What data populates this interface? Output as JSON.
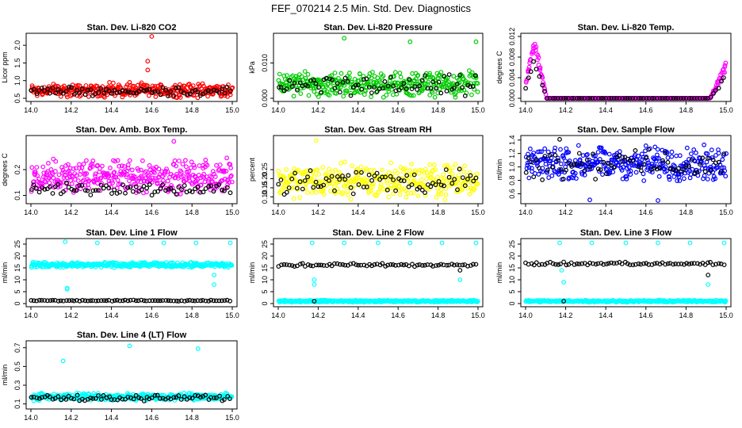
{
  "suptitle": "FEF_070214  2.5 Min. Std. Dev. Diagnostics",
  "chart_data": [
    {
      "type": "scatter",
      "title": "Stan. Dev. Li-820 CO2",
      "ylabel": "Licor ppm",
      "xlim": [
        14.0,
        15.0
      ],
      "ylim": [
        0.5,
        2.25
      ],
      "xticks": [
        "14.0",
        "14.2",
        "14.4",
        "14.6",
        "14.8",
        "15.0"
      ],
      "yticks": [
        0.5,
        1.0,
        1.5,
        2.0
      ],
      "series": [
        {
          "name": "Black",
          "color": "#000000",
          "values_range": [
            0.55,
            0.85
          ]
        },
        {
          "name": "Red",
          "color": "#ff0000",
          "values_range": [
            0.5,
            0.95
          ],
          "outliers": [
            [
              14.58,
              1.3
            ],
            [
              14.6,
              2.25
            ],
            [
              14.58,
              1.55
            ],
            [
              14.39,
              0.95
            ],
            [
              14.49,
              0.95
            ]
          ]
        }
      ]
    },
    {
      "type": "scatter",
      "title": "Stan. Dev. Li-820 Pressure",
      "ylabel": "kPa",
      "xlim": [
        14.0,
        15.0
      ],
      "ylim": [
        0.0,
        0.0175
      ],
      "xticks": [
        "14.0",
        "14.2",
        "14.4",
        "14.6",
        "14.8",
        "15.0"
      ],
      "yticks": [
        0.0,
        0.01
      ],
      "series": [
        {
          "name": "Black",
          "color": "#000000",
          "values_range": [
            0.0,
            0.007
          ]
        },
        {
          "name": "Green",
          "color": "#00cc00",
          "values_range": [
            0.0,
            0.008
          ],
          "outliers": [
            [
              14.33,
              0.017
            ],
            [
              14.66,
              0.016
            ],
            [
              14.99,
              0.016
            ]
          ]
        }
      ]
    },
    {
      "type": "scatter",
      "title": "Stan. Dev. Li-820 Temp.",
      "ylabel": "degrees C",
      "xlim": [
        14.0,
        15.0
      ],
      "ylim": [
        0.0,
        0.012
      ],
      "xticks": [
        "14.0",
        "14.2",
        "14.4",
        "14.6",
        "14.8",
        "15.0"
      ],
      "yticks": [
        0.0,
        0.004,
        0.008,
        0.012
      ],
      "series": [
        {
          "name": "Black",
          "color": "#000000",
          "values_range": [
            0.0,
            0.008
          ]
        },
        {
          "name": "Magenta",
          "color": "#ff00ff",
          "values_range": [
            0.0,
            0.012
          ]
        }
      ]
    },
    {
      "type": "scatter",
      "title": "Stan. Dev. Amb. Box Temp.",
      "ylabel": "degrees C",
      "xlim": [
        14.0,
        15.0
      ],
      "ylim": [
        0.08,
        0.32
      ],
      "xticks": [
        "14.0",
        "14.2",
        "14.4",
        "14.6",
        "14.8",
        "15.0"
      ],
      "yticks": [
        0.1,
        0.2
      ],
      "series": [
        {
          "name": "Black",
          "color": "#000000",
          "values_range": [
            0.1,
            0.15
          ]
        },
        {
          "name": "Magenta",
          "color": "#ff00ff",
          "values_range": [
            0.1,
            0.25
          ],
          "outliers": [
            [
              14.71,
              0.31
            ]
          ]
        }
      ]
    },
    {
      "type": "scatter",
      "title": "Stan. Dev. Gas Stream RH",
      "ylabel": "percent",
      "xlim": [
        14.0,
        15.0
      ],
      "ylim": [
        0.08,
        0.42
      ],
      "xticks": [
        "14.0",
        "14.2",
        "14.4",
        "14.6",
        "14.8",
        "15.0"
      ],
      "yticks": [
        0.1,
        0.15,
        0.2,
        0.25
      ],
      "series": [
        {
          "name": "Black",
          "color": "#000000",
          "values_range": [
            0.1,
            0.27
          ]
        },
        {
          "name": "Yellow",
          "color": "#ffff00",
          "values_range": [
            0.08,
            0.3
          ],
          "outliers": [
            [
              14.19,
              0.41
            ]
          ]
        }
      ]
    },
    {
      "type": "scatter",
      "title": "Stan. Dev. Sample Flow",
      "ylabel": "ml/min",
      "xlim": [
        14.0,
        15.0
      ],
      "ylim": [
        0.5,
        1.42
      ],
      "xticks": [
        "14.0",
        "14.2",
        "14.4",
        "14.6",
        "14.8",
        "15.0"
      ],
      "yticks": [
        0.6,
        0.8,
        1.0,
        1.2,
        1.4
      ],
      "series": [
        {
          "name": "Black",
          "color": "#000000",
          "values_range": [
            0.8,
            1.3
          ],
          "outliers": [
            [
              14.17,
              1.41
            ]
          ]
        },
        {
          "name": "Blue",
          "color": "#0000ff",
          "values_range": [
            0.75,
            1.35
          ],
          "outliers": [
            [
              14.32,
              0.51
            ],
            [
              14.66,
              0.5
            ]
          ]
        }
      ]
    },
    {
      "type": "scatter",
      "title": "Stan. Dev. Line 1 Flow",
      "ylabel": "ml/min",
      "xlim": [
        14.0,
        15.0
      ],
      "ylim": [
        0.0,
        26.0
      ],
      "xticks": [
        "14.0",
        "14.2",
        "14.4",
        "14.6",
        "14.8",
        "15.0"
      ],
      "yticks": [
        0,
        5,
        10,
        15,
        20,
        25
      ],
      "series": [
        {
          "name": "Black",
          "color": "#000000",
          "values_range": [
            1.0,
            1.5
          ]
        },
        {
          "name": "Cyan",
          "color": "#00ffff",
          "values_range": [
            15.0,
            17.5
          ],
          "outliers": [
            [
              14.18,
              6.0
            ],
            [
              14.18,
              6.5
            ],
            [
              14.17,
              26.0
            ],
            [
              14.33,
              25.5
            ],
            [
              14.5,
              25.5
            ],
            [
              14.66,
              25.5
            ],
            [
              14.82,
              25.5
            ],
            [
              14.99,
              25.5
            ],
            [
              14.91,
              8.0
            ],
            [
              14.91,
              12.0
            ]
          ]
        }
      ]
    },
    {
      "type": "scatter",
      "title": "Stan. Dev. Line 2 Flow",
      "ylabel": "ml/min",
      "xlim": [
        14.0,
        15.0
      ],
      "ylim": [
        0.0,
        26.0
      ],
      "xticks": [
        "14.0",
        "14.2",
        "14.4",
        "14.6",
        "14.8",
        "15.0"
      ],
      "yticks": [
        0,
        5,
        10,
        15,
        20,
        25
      ],
      "series": [
        {
          "name": "Black",
          "color": "#000000",
          "values_range": [
            15.5,
            17.0
          ],
          "outliers": [
            [
              14.18,
              1.0
            ],
            [
              14.91,
              14.0
            ]
          ]
        },
        {
          "name": "Cyan",
          "color": "#00ffff",
          "values_range": [
            0.5,
            1.5
          ],
          "outliers": [
            [
              14.18,
              10.0
            ],
            [
              14.18,
              8.0
            ],
            [
              14.17,
              25.5
            ],
            [
              14.33,
              25.5
            ],
            [
              14.5,
              25.5
            ],
            [
              14.66,
              25.5
            ],
            [
              14.82,
              25.5
            ],
            [
              14.99,
              25.5
            ],
            [
              14.91,
              10.0
            ]
          ]
        }
      ]
    },
    {
      "type": "scatter",
      "title": "Stan. Dev. Line 3 Flow",
      "ylabel": "ml/min",
      "xlim": [
        14.0,
        15.0
      ],
      "ylim": [
        0.0,
        26.0
      ],
      "xticks": [
        "14.0",
        "14.2",
        "14.4",
        "14.6",
        "14.8",
        "15.0"
      ],
      "yticks": [
        0,
        5,
        10,
        15,
        20,
        25
      ],
      "series": [
        {
          "name": "Black",
          "color": "#000000",
          "values_range": [
            16.0,
            17.5
          ],
          "outliers": [
            [
              14.19,
              1.0
            ],
            [
              14.91,
              12.0
            ]
          ]
        },
        {
          "name": "Cyan",
          "color": "#00ffff",
          "values_range": [
            0.5,
            1.5
          ],
          "outliers": [
            [
              14.18,
              14.0
            ],
            [
              14.19,
              9.0
            ],
            [
              14.17,
              25.5
            ],
            [
              14.33,
              25.5
            ],
            [
              14.5,
              25.5
            ],
            [
              14.66,
              25.5
            ],
            [
              14.82,
              25.5
            ],
            [
              14.99,
              25.5
            ],
            [
              14.91,
              8.0
            ]
          ]
        }
      ]
    },
    {
      "type": "scatter",
      "title": "Stan. Dev. Line 4 (LT) Flow",
      "ylabel": "ml/min",
      "xlim": [
        14.0,
        15.0
      ],
      "ylim": [
        0.08,
        0.74
      ],
      "xticks": [
        "14.0",
        "14.2",
        "14.4",
        "14.6",
        "14.8",
        "15.0"
      ],
      "yticks": [
        0.1,
        0.3,
        0.5,
        0.7
      ],
      "series": [
        {
          "name": "Black",
          "color": "#000000",
          "values_range": [
            0.13,
            0.2
          ]
        },
        {
          "name": "Cyan",
          "color": "#00ffff",
          "values_range": [
            0.13,
            0.22
          ],
          "outliers": [
            [
              14.16,
              0.56
            ],
            [
              14.49,
              0.72
            ],
            [
              14.83,
              0.69
            ]
          ]
        }
      ]
    }
  ]
}
